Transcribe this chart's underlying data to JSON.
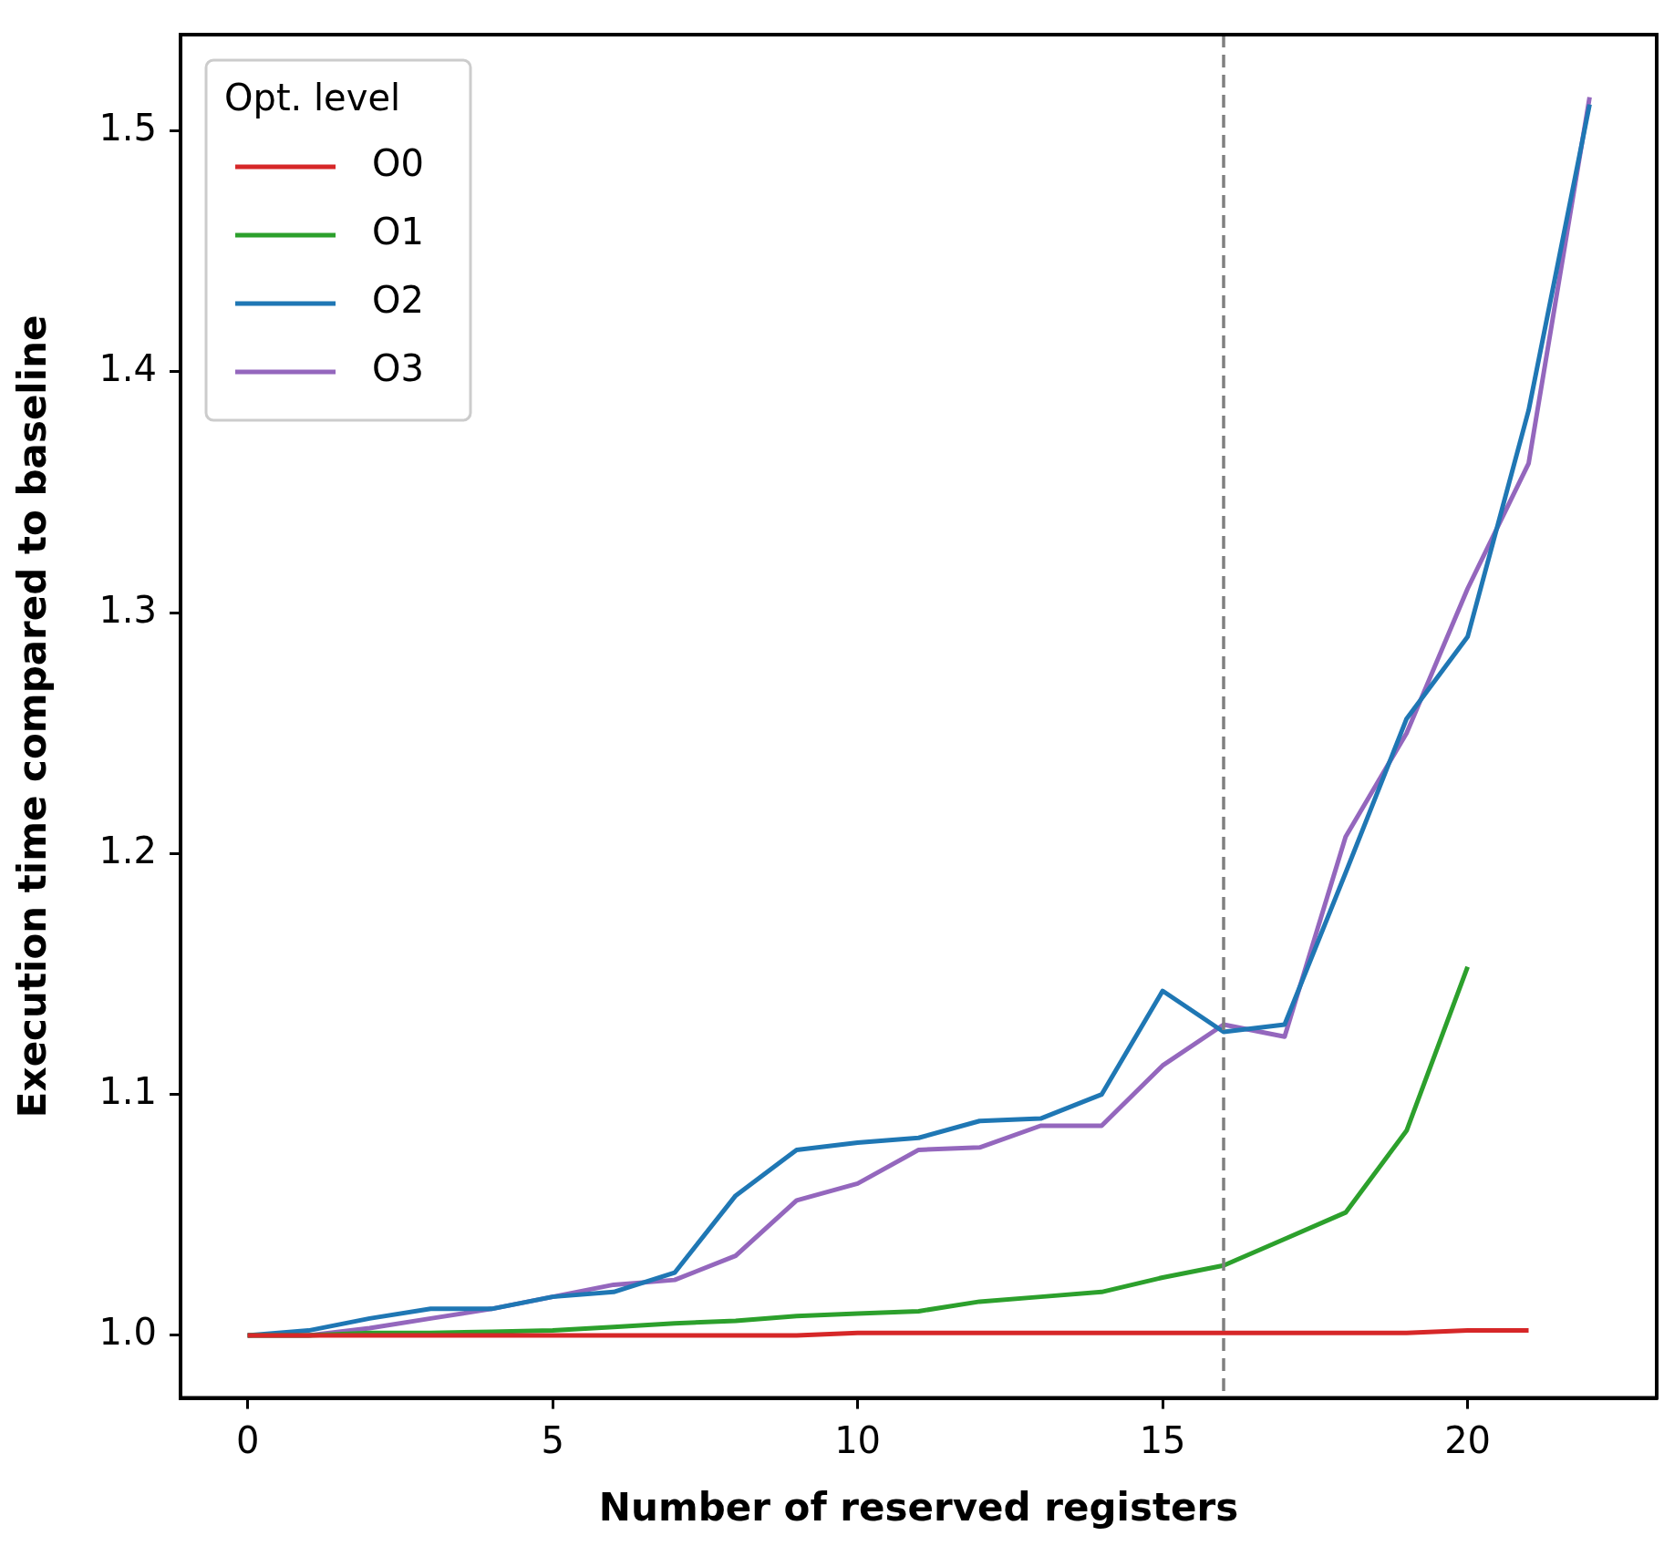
{
  "chart_data": {
    "type": "line",
    "xlabel": "Number of reserved registers",
    "ylabel": "Execution time compared to baseline",
    "legend_title": "Opt. level",
    "legend": "top left",
    "grid": false,
    "line_style": "solid",
    "marker": "none",
    "xlim": [
      -1.1,
      23.1
    ],
    "xticks": [
      0,
      5,
      10,
      15,
      20
    ],
    "ylim": [
      0.974,
      1.54
    ],
    "yticks": [
      {
        "value": 1.0,
        "label": "1.0"
      },
      1.1,
      1.2,
      1.3,
      1.4,
      1.5
    ],
    "ref_lines": [
      {
        "axis": "x",
        "value": 16,
        "color": "#808080",
        "line_style": "dashed"
      }
    ],
    "series": [
      {
        "name": "O0",
        "color": "#d62728",
        "x": [
          0,
          1,
          2,
          3,
          4,
          5,
          6,
          7,
          8,
          9,
          10,
          11,
          12,
          13,
          14,
          15,
          16,
          17,
          18,
          19,
          20,
          21
        ],
        "values": [
          1.0,
          1.0,
          1.0,
          1.0,
          1.0,
          1.0,
          1.0,
          1.0,
          1.0,
          1.0,
          1.001,
          1.001,
          1.001,
          1.001,
          1.001,
          1.001,
          1.001,
          1.001,
          1.001,
          1.001,
          1.002,
          1.002
        ]
      },
      {
        "name": "O1",
        "color": "#2ca02c",
        "x": [
          0,
          1,
          2,
          3,
          4,
          5,
          6,
          7,
          8,
          9,
          10,
          11,
          12,
          13,
          14,
          15,
          16,
          17,
          18,
          19,
          20
        ],
        "values": [
          1.0,
          1.0,
          1.001,
          1.001,
          1.0015,
          1.002,
          1.0035,
          1.005,
          1.006,
          1.008,
          1.009,
          1.01,
          1.014,
          1.016,
          1.018,
          1.024,
          1.029,
          1.04,
          1.051,
          1.085,
          1.153
        ]
      },
      {
        "name": "O2",
        "color": "#1f77b4",
        "x": [
          0,
          1,
          2,
          3,
          4,
          5,
          6,
          7,
          8,
          9,
          10,
          11,
          12,
          13,
          14,
          15,
          16,
          17,
          18,
          19,
          20,
          21,
          22
        ],
        "values": [
          1.0,
          1.002,
          1.007,
          1.011,
          1.011,
          1.016,
          1.018,
          1.026,
          1.058,
          1.077,
          1.08,
          1.082,
          1.089,
          1.09,
          1.1,
          1.143,
          1.126,
          1.129,
          1.192,
          1.256,
          1.29,
          1.384,
          1.511
        ]
      },
      {
        "name": "O3",
        "color": "#9467bd",
        "x": [
          0,
          1,
          2,
          3,
          4,
          5,
          6,
          7,
          8,
          9,
          10,
          11,
          12,
          13,
          14,
          15,
          16,
          17,
          18,
          19,
          20,
          21,
          22
        ],
        "values": [
          1.0,
          1.0,
          1.003,
          1.007,
          1.011,
          1.016,
          1.021,
          1.023,
          1.033,
          1.056,
          1.063,
          1.077,
          1.078,
          1.087,
          1.087,
          1.112,
          1.129,
          1.124,
          1.207,
          1.25,
          1.31,
          1.362,
          1.514
        ]
      }
    ]
  }
}
